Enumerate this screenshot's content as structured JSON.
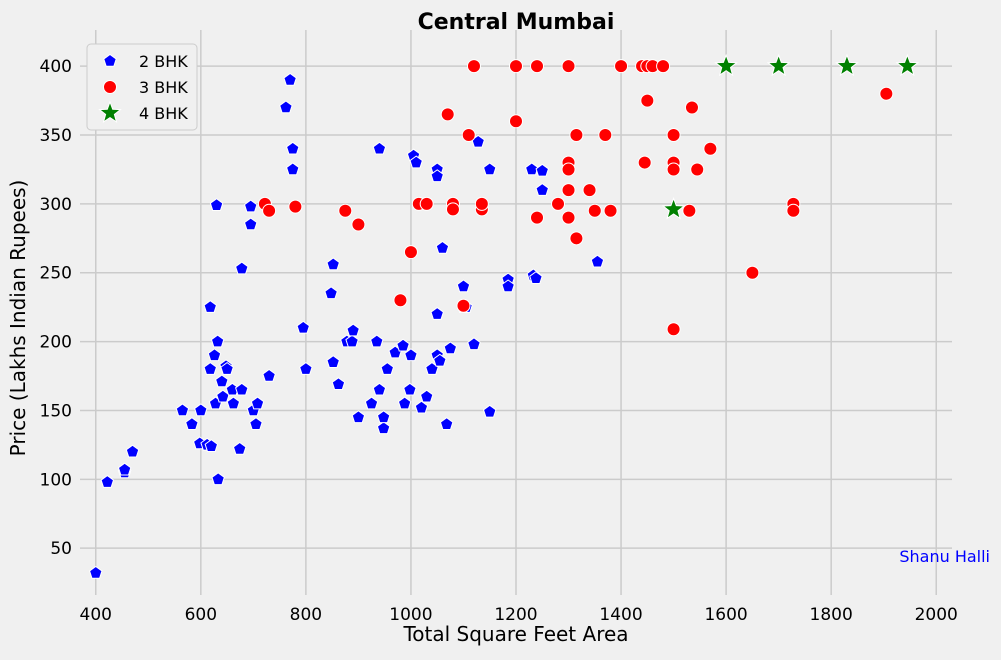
{
  "chart_data": {
    "type": "scatter",
    "title": "Central Mumbai",
    "xlabel": "Total Square Feet Area",
    "ylabel": "Price (Lakhs Indian Rupees)",
    "xlim": [
      370,
      2030
    ],
    "ylim": [
      16,
      419
    ],
    "xticks": [
      400,
      600,
      800,
      1000,
      1200,
      1400,
      1600,
      1800,
      2000
    ],
    "yticks": [
      50,
      100,
      150,
      200,
      250,
      300,
      350,
      400
    ],
    "grid": true,
    "legend_position": "top-left",
    "annotation": {
      "text": "Shanu Halli",
      "color": "#0000ff"
    },
    "series": [
      {
        "name": "2 BHK",
        "marker": "pentagon",
        "color": "#0000ff",
        "points": [
          [
            400,
            32
          ],
          [
            422,
            98
          ],
          [
            455,
            105
          ],
          [
            455,
            107
          ],
          [
            470,
            120
          ],
          [
            565,
            150
          ],
          [
            583,
            140
          ],
          [
            598,
            126
          ],
          [
            600,
            150
          ],
          [
            612,
            125
          ],
          [
            618,
            225
          ],
          [
            618,
            180
          ],
          [
            620,
            124
          ],
          [
            626,
            190
          ],
          [
            628,
            155
          ],
          [
            630,
            299
          ],
          [
            632,
            200
          ],
          [
            633,
            100
          ],
          [
            640,
            171
          ],
          [
            642,
            160
          ],
          [
            648,
            182
          ],
          [
            650,
            180
          ],
          [
            660,
            165
          ],
          [
            662,
            155
          ],
          [
            674,
            122
          ],
          [
            678,
            253
          ],
          [
            678,
            165
          ],
          [
            695,
            298
          ],
          [
            695,
            285
          ],
          [
            700,
            150
          ],
          [
            705,
            140
          ],
          [
            708,
            155
          ],
          [
            730,
            175
          ],
          [
            762,
            370
          ],
          [
            770,
            390
          ],
          [
            775,
            340
          ],
          [
            775,
            325
          ],
          [
            795,
            210
          ],
          [
            800,
            180
          ],
          [
            848,
            235
          ],
          [
            852,
            256
          ],
          [
            852,
            185
          ],
          [
            862,
            169
          ],
          [
            878,
            200
          ],
          [
            888,
            200
          ],
          [
            890,
            208
          ],
          [
            900,
            145
          ],
          [
            925,
            155
          ],
          [
            935,
            200
          ],
          [
            940,
            340
          ],
          [
            940,
            165
          ],
          [
            948,
            137
          ],
          [
            948,
            145
          ],
          [
            955,
            180
          ],
          [
            970,
            192
          ],
          [
            985,
            197
          ],
          [
            988,
            155
          ],
          [
            998,
            165
          ],
          [
            1000,
            190
          ],
          [
            1005,
            335
          ],
          [
            1010,
            330
          ],
          [
            1020,
            152
          ],
          [
            1030,
            160
          ],
          [
            1040,
            180
          ],
          [
            1050,
            325
          ],
          [
            1050,
            320
          ],
          [
            1050,
            220
          ],
          [
            1050,
            190
          ],
          [
            1055,
            186
          ],
          [
            1060,
            268
          ],
          [
            1068,
            140
          ],
          [
            1075,
            195
          ],
          [
            1100,
            240
          ],
          [
            1100,
            225
          ],
          [
            1105,
            225
          ],
          [
            1120,
            198
          ],
          [
            1128,
            345
          ],
          [
            1150,
            325
          ],
          [
            1150,
            149
          ],
          [
            1185,
            245
          ],
          [
            1185,
            240
          ],
          [
            1230,
            325
          ],
          [
            1233,
            248
          ],
          [
            1238,
            246
          ],
          [
            1250,
            324
          ],
          [
            1250,
            310
          ],
          [
            1355,
            258
          ]
        ]
      },
      {
        "name": "3 BHK",
        "marker": "circle",
        "color": "#ff0000",
        "points": [
          [
            722,
            300
          ],
          [
            730,
            295
          ],
          [
            780,
            298
          ],
          [
            875,
            295
          ],
          [
            900,
            285
          ],
          [
            980,
            230
          ],
          [
            1000,
            265
          ],
          [
            1015,
            300
          ],
          [
            1030,
            300
          ],
          [
            1070,
            365
          ],
          [
            1080,
            300
          ],
          [
            1080,
            296
          ],
          [
            1100,
            226
          ],
          [
            1110,
            350
          ],
          [
            1120,
            400
          ],
          [
            1135,
            296
          ],
          [
            1135,
            300
          ],
          [
            1200,
            400
          ],
          [
            1200,
            360
          ],
          [
            1240,
            400
          ],
          [
            1240,
            290
          ],
          [
            1280,
            300
          ],
          [
            1300,
            400
          ],
          [
            1300,
            330
          ],
          [
            1300,
            325
          ],
          [
            1300,
            310
          ],
          [
            1300,
            290
          ],
          [
            1315,
            350
          ],
          [
            1315,
            275
          ],
          [
            1340,
            310
          ],
          [
            1350,
            295
          ],
          [
            1370,
            350
          ],
          [
            1380,
            295
          ],
          [
            1400,
            400
          ],
          [
            1440,
            400
          ],
          [
            1445,
            330
          ],
          [
            1450,
            400
          ],
          [
            1450,
            375
          ],
          [
            1460,
            400
          ],
          [
            1480,
            400
          ],
          [
            1500,
            350
          ],
          [
            1500,
            330
          ],
          [
            1500,
            325
          ],
          [
            1500,
            209
          ],
          [
            1530,
            295
          ],
          [
            1535,
            370
          ],
          [
            1545,
            325
          ],
          [
            1570,
            340
          ],
          [
            1650,
            250
          ],
          [
            1728,
            300
          ],
          [
            1728,
            295
          ],
          [
            1905,
            380
          ]
        ]
      },
      {
        "name": "4 BHK",
        "marker": "star",
        "color": "#008000",
        "points": [
          [
            1500,
            296
          ],
          [
            1600,
            400
          ],
          [
            1700,
            400
          ],
          [
            1830,
            400
          ],
          [
            1945,
            400
          ]
        ]
      }
    ]
  }
}
